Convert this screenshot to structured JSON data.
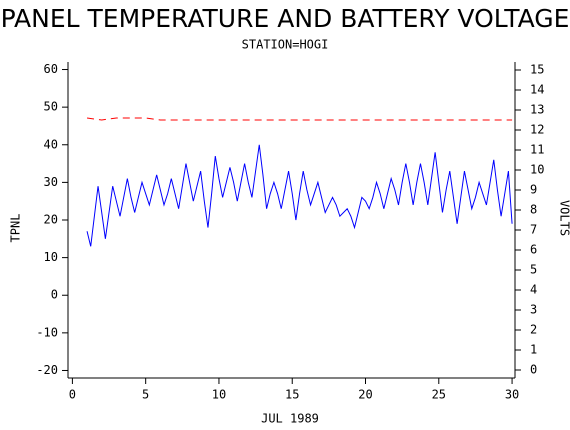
{
  "chart_data": {
    "type": "line",
    "title": "PANEL TEMPERATURE AND BATTERY VOLTAGE",
    "subtitle": "STATION=HOGI",
    "x_label": "JUL 1989",
    "y_label": "TPNL",
    "y2_label": "VOLTS",
    "xlim": [
      -0.3,
      30.2
    ],
    "xticks": [
      0,
      5,
      10,
      15,
      20,
      25,
      30
    ],
    "ylim": [
      -22,
      62
    ],
    "yticks": [
      -20,
      -10,
      0,
      10,
      20,
      30,
      40,
      50,
      60
    ],
    "y2lim": [
      -0.4,
      15.4
    ],
    "y2ticks": [
      0,
      1,
      2,
      3,
      4,
      5,
      6,
      7,
      8,
      9,
      10,
      11,
      12,
      13,
      14,
      15
    ],
    "series": [
      {
        "name": "TPNL",
        "color": "#0000ff",
        "dash": false,
        "x": [
          1,
          1.25,
          1.5,
          1.75,
          2,
          2.25,
          2.5,
          2.75,
          3,
          3.25,
          3.5,
          3.75,
          4,
          4.25,
          4.5,
          4.75,
          5,
          5.25,
          5.5,
          5.75,
          6,
          6.25,
          6.5,
          6.75,
          7,
          7.25,
          7.5,
          7.75,
          8,
          8.25,
          8.5,
          8.75,
          9,
          9.25,
          9.5,
          9.75,
          10,
          10.25,
          10.5,
          10.75,
          11,
          11.25,
          11.5,
          11.75,
          12,
          12.25,
          12.5,
          12.75,
          13,
          13.25,
          13.5,
          13.75,
          14,
          14.25,
          14.5,
          14.75,
          15,
          15.25,
          15.5,
          15.75,
          16,
          16.25,
          16.5,
          16.75,
          17,
          17.25,
          17.5,
          17.75,
          18,
          18.25,
          18.5,
          18.75,
          19,
          19.25,
          19.5,
          19.75,
          20,
          20.25,
          20.5,
          20.75,
          21,
          21.25,
          21.5,
          21.75,
          22,
          22.25,
          22.5,
          22.75,
          23,
          23.25,
          23.5,
          23.75,
          24,
          24.25,
          24.5,
          24.75,
          25,
          25.25,
          25.5,
          25.75,
          26,
          26.25,
          26.5,
          26.75,
          27,
          27.25,
          27.5,
          27.75,
          28,
          28.25,
          28.5,
          28.75,
          29,
          29.25,
          29.5,
          29.75,
          30
        ],
        "values": [
          17,
          13,
          21,
          29,
          22,
          15,
          22,
          29,
          25,
          21,
          26,
          31,
          26,
          22,
          26,
          30,
          27,
          24,
          28,
          32,
          28,
          24,
          27,
          31,
          27,
          23,
          29,
          35,
          30,
          25,
          29,
          33,
          25,
          18,
          27,
          37,
          31,
          26,
          30,
          34,
          30,
          25,
          30,
          35,
          30,
          26,
          33,
          40,
          32,
          23,
          27,
          30,
          27,
          23,
          28,
          33,
          27,
          20,
          27,
          33,
          28,
          24,
          27,
          30,
          26,
          22,
          24,
          26,
          24,
          21,
          22,
          23,
          21,
          18,
          22,
          26,
          25,
          23,
          26,
          30,
          27,
          23,
          27,
          31,
          28,
          24,
          30,
          35,
          30,
          24,
          30,
          35,
          30,
          24,
          31,
          38,
          30,
          22,
          28,
          33,
          26,
          19,
          26,
          33,
          28,
          23,
          26,
          30,
          27,
          24,
          30,
          36,
          28,
          21,
          27,
          33,
          19
        ]
      },
      {
        "name": "VOLTS",
        "color": "#ff0000",
        "dash": true,
        "axis": "y2",
        "x": [
          1,
          2,
          3,
          4,
          5,
          6,
          7,
          8,
          9,
          10,
          11,
          12,
          13,
          14,
          15,
          16,
          17,
          18,
          19,
          20,
          21,
          22,
          23,
          24,
          25,
          26,
          27,
          28,
          29,
          30
        ],
        "values": [
          12.6,
          12.5,
          12.6,
          12.6,
          12.6,
          12.5,
          12.5,
          12.5,
          12.5,
          12.5,
          12.5,
          12.5,
          12.5,
          12.5,
          12.5,
          12.5,
          12.5,
          12.5,
          12.5,
          12.5,
          12.5,
          12.5,
          12.5,
          12.5,
          12.5,
          12.5,
          12.5,
          12.5,
          12.5,
          12.5
        ]
      }
    ]
  }
}
